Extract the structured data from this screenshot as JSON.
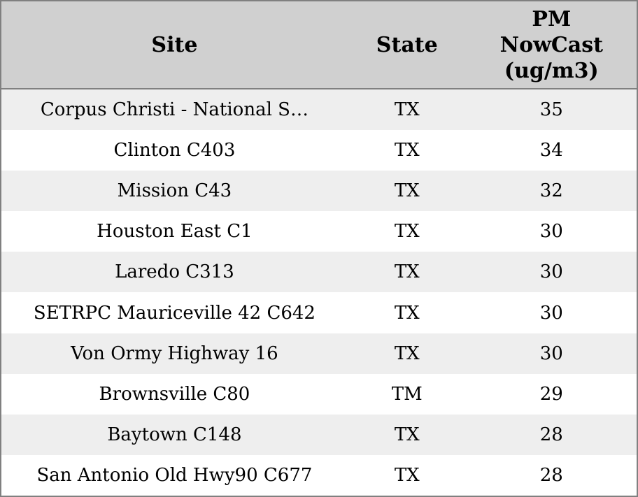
{
  "colors": {
    "header_bg": "#d0d0d0",
    "row_alt_bg": "#eeeeee",
    "row_bg": "#ffffff",
    "border": "#808080",
    "text": "#000000"
  },
  "chart_data": {
    "type": "table",
    "columns": [
      "Site",
      "State",
      "PM NowCast (ug/m3)"
    ],
    "rows": [
      [
        "Corpus Christi - National S…",
        "TX",
        35
      ],
      [
        "Clinton C403",
        "TX",
        34
      ],
      [
        "Mission C43",
        "TX",
        32
      ],
      [
        "Houston East C1",
        "TX",
        30
      ],
      [
        "Laredo C313",
        "TX",
        30
      ],
      [
        "SETRPC Mauriceville 42 C642",
        "TX",
        30
      ],
      [
        "Von Ormy Highway 16",
        "TX",
        30
      ],
      [
        "Brownsville C80",
        "TM",
        29
      ],
      [
        "Baytown C148",
        "TX",
        28
      ],
      [
        "San Antonio Old Hwy90 C677",
        "TX",
        28
      ]
    ]
  }
}
